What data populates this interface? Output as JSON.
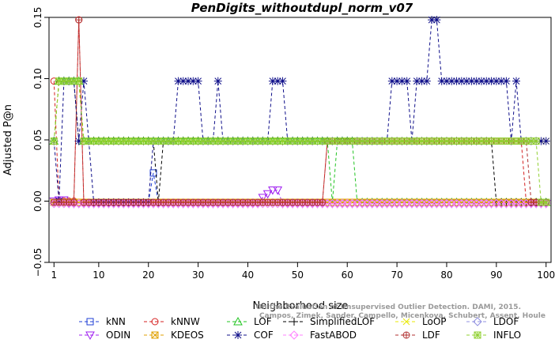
{
  "chart_data": {
    "type": "line",
    "title": "PenDigits_withoutdupl_norm_v07",
    "xlabel": "Neighborhood size",
    "ylabel": "Adjusted P@n",
    "xlim": [
      0,
      101
    ],
    "ylim": [
      -0.05,
      0.15
    ],
    "xticks": [
      1,
      10,
      20,
      30,
      40,
      50,
      60,
      70,
      80,
      90,
      100
    ],
    "yticks": [
      -0.05,
      0.0,
      0.05,
      0.1,
      0.15
    ],
    "ytick_labels": [
      "−0.05",
      "0.00",
      "0.05",
      "0.10",
      "0.15"
    ],
    "grid": false,
    "legend_position": "bottom",
    "watermark": [
      "Campos, Zimek, Sander, Campello, Micenkova, Schubert, Assent, Houle",
      "On the Evaluation of Unsupervised Outlier Detection. DAMI, 2015."
    ],
    "series": [
      {
        "name": "kNN",
        "color": "#1f3fd6",
        "marker": "square",
        "segments": [
          {
            "from": 1,
            "to": 20,
            "y": -0.001
          },
          {
            "from": 21,
            "to": 21,
            "y": 0.023
          },
          {
            "from": 22,
            "to": 100,
            "y": -0.001
          }
        ]
      },
      {
        "name": "kNNW",
        "color": "#d62020",
        "marker": "circle",
        "segments": [
          {
            "from": 1,
            "to": 1,
            "y": 0.098
          },
          {
            "from": 2,
            "to": 5,
            "y": 0.0
          },
          {
            "from": 6,
            "to": 6,
            "y": 0.148
          },
          {
            "from": 7,
            "to": 55,
            "y": -0.001
          },
          {
            "from": 56,
            "to": 95,
            "y": 0.049
          },
          {
            "from": 96,
            "to": 100,
            "y": -0.001
          }
        ]
      },
      {
        "name": "LOF",
        "color": "#22c422",
        "marker": "triangle",
        "segments": [
          {
            "from": 1,
            "to": 1,
            "y": 0.049
          },
          {
            "from": 2,
            "to": 6,
            "y": 0.098
          },
          {
            "from": 7,
            "to": 56,
            "y": 0.049
          },
          {
            "from": 57,
            "to": 57,
            "y": -0.001
          },
          {
            "from": 58,
            "to": 61,
            "y": 0.049
          },
          {
            "from": 62,
            "to": 100,
            "y": -0.001
          }
        ]
      },
      {
        "name": "SimplifiedLOF",
        "color": "#000000",
        "marker": "plus",
        "segments": [
          {
            "from": 1,
            "to": 1,
            "y": 0.049
          },
          {
            "from": 2,
            "to": 5,
            "y": 0.098
          },
          {
            "from": 6,
            "to": 21,
            "y": 0.049
          },
          {
            "from": 22,
            "to": 22,
            "y": -0.001
          },
          {
            "from": 23,
            "to": 89,
            "y": 0.049
          },
          {
            "from": 90,
            "to": 100,
            "y": -0.001
          }
        ]
      },
      {
        "name": "LoOP",
        "color": "#e8e800",
        "marker": "cross",
        "segments": [
          {
            "from": 1,
            "to": 1,
            "y": 0.049
          },
          {
            "from": 2,
            "to": 6,
            "y": 0.098
          },
          {
            "from": 7,
            "to": 100,
            "y": 0.049
          }
        ]
      },
      {
        "name": "LDOF",
        "color": "#9090e0",
        "marker": "diamond",
        "segments": [
          {
            "from": 1,
            "to": 100,
            "y": -0.002
          }
        ]
      },
      {
        "name": "ODIN",
        "color": "#a020f0",
        "marker": "triangle-down",
        "segments": [
          {
            "from": 1,
            "to": 1,
            "y": 0.0
          },
          {
            "from": 2,
            "to": 3,
            "y": 0.001
          },
          {
            "from": 4,
            "to": 42,
            "y": -0.002
          },
          {
            "from": 43,
            "to": 43,
            "y": 0.003
          },
          {
            "from": 44,
            "to": 44,
            "y": 0.006
          },
          {
            "from": 45,
            "to": 46,
            "y": 0.009
          },
          {
            "from": 47,
            "to": 100,
            "y": -0.002
          }
        ]
      },
      {
        "name": "KDEOS",
        "color": "#e0a000",
        "marker": "boxed-cross",
        "segments": [
          {
            "from": 1,
            "to": 100,
            "y": -0.001
          }
        ]
      },
      {
        "name": "COF",
        "color": "#10108a",
        "marker": "asterisk",
        "segments": [
          {
            "from": 1,
            "to": 1,
            "y": 0.049
          },
          {
            "from": 2,
            "to": 2,
            "y": 0.0
          },
          {
            "from": 3,
            "to": 5,
            "y": 0.098
          },
          {
            "from": 6,
            "to": 6,
            "y": 0.049
          },
          {
            "from": 7,
            "to": 7,
            "y": 0.098
          },
          {
            "from": 8,
            "to": 8,
            "y": 0.049
          },
          {
            "from": 9,
            "to": 20,
            "y": -0.001
          },
          {
            "from": 21,
            "to": 25,
            "y": 0.049
          },
          {
            "from": 26,
            "to": 30,
            "y": 0.098
          },
          {
            "from": 31,
            "to": 33,
            "y": 0.049
          },
          {
            "from": 34,
            "to": 34,
            "y": 0.098
          },
          {
            "from": 35,
            "to": 44,
            "y": 0.049
          },
          {
            "from": 45,
            "to": 47,
            "y": 0.098
          },
          {
            "from": 48,
            "to": 68,
            "y": 0.049
          },
          {
            "from": 69,
            "to": 72,
            "y": 0.098
          },
          {
            "from": 73,
            "to": 73,
            "y": 0.049
          },
          {
            "from": 74,
            "to": 76,
            "y": 0.098
          },
          {
            "from": 77,
            "to": 78,
            "y": 0.148
          },
          {
            "from": 79,
            "to": 92,
            "y": 0.098
          },
          {
            "from": 93,
            "to": 93,
            "y": 0.049
          },
          {
            "from": 94,
            "to": 94,
            "y": 0.098
          },
          {
            "from": 95,
            "to": 100,
            "y": 0.049
          }
        ]
      },
      {
        "name": "FastABOD",
        "color": "#ff80ff",
        "marker": "diamond",
        "segments": [
          {
            "from": 1,
            "to": 100,
            "y": -0.002
          }
        ]
      },
      {
        "name": "LDF",
        "color": "#b03030",
        "marker": "circle-plus",
        "segments": [
          {
            "from": 1,
            "to": 5,
            "y": -0.001
          },
          {
            "from": 6,
            "to": 6,
            "y": 0.148
          },
          {
            "from": 7,
            "to": 55,
            "y": -0.001
          },
          {
            "from": 56,
            "to": 96,
            "y": 0.049
          },
          {
            "from": 97,
            "to": 100,
            "y": -0.001
          }
        ]
      },
      {
        "name": "INFLO",
        "color": "#90d030",
        "marker": "boxed-asterisk",
        "segments": [
          {
            "from": 1,
            "to": 1,
            "y": 0.049
          },
          {
            "from": 2,
            "to": 6,
            "y": 0.098
          },
          {
            "from": 7,
            "to": 98,
            "y": 0.049
          },
          {
            "from": 99,
            "to": 100,
            "y": -0.001
          }
        ]
      }
    ]
  }
}
